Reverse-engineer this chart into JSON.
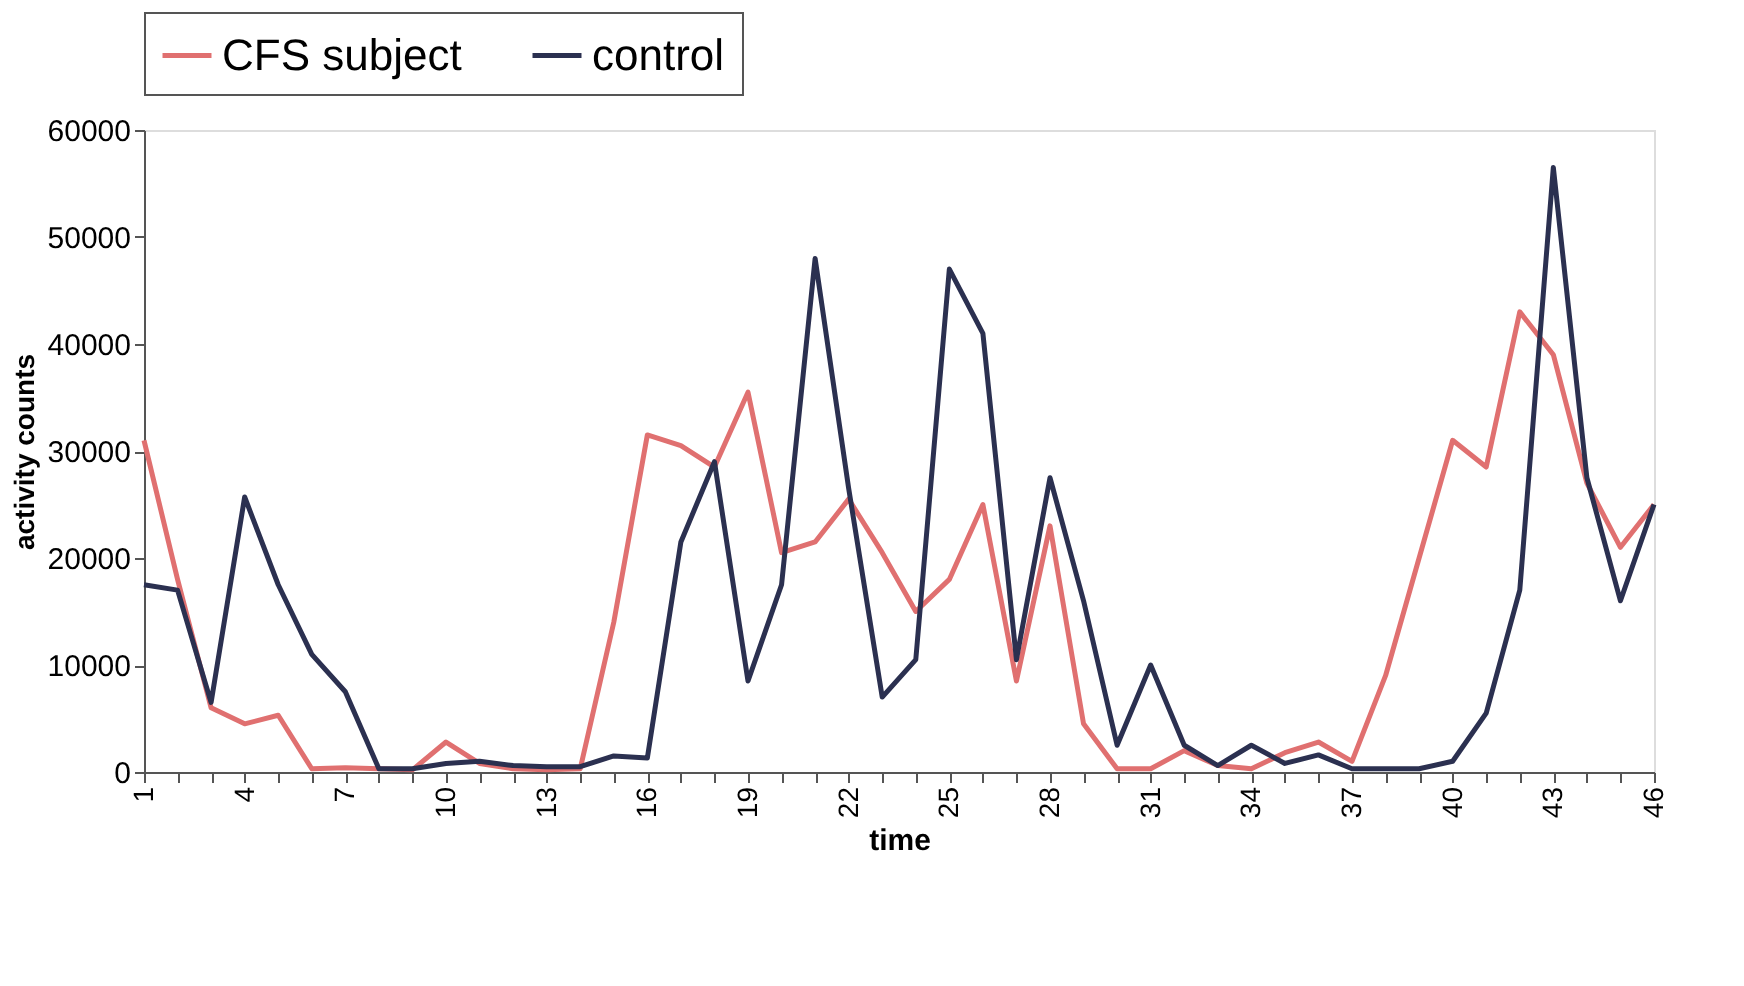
{
  "chart_data": {
    "type": "line",
    "xlabel": "time",
    "ylabel": "activity counts",
    "categories": [
      "1",
      null,
      null,
      "4",
      null,
      null,
      "7",
      null,
      null,
      "10",
      null,
      null,
      "13",
      null,
      null,
      "16",
      null,
      null,
      "19",
      null,
      null,
      "22",
      null,
      null,
      "25",
      null,
      null,
      "28",
      null,
      null,
      "31",
      null,
      null,
      "34",
      null,
      null,
      "37",
      null,
      null,
      "40",
      null,
      null,
      "43",
      null,
      null,
      "46"
    ],
    "series": [
      {
        "name": "CFS subject",
        "color": "#e07070",
        "values": [
          31000,
          18000,
          6000,
          4500,
          5300,
          300,
          400,
          300,
          200,
          2800,
          800,
          300,
          200,
          300,
          14000,
          31500,
          30500,
          28500,
          35500,
          20500,
          21500,
          25500,
          20500,
          15000,
          18000,
          25000,
          8500,
          23000,
          4500,
          300,
          300,
          2000,
          600,
          300,
          1800,
          2800,
          1000,
          9000,
          20000,
          31000,
          28500,
          43000,
          39000,
          27000,
          21000,
          25000
        ]
      },
      {
        "name": "control",
        "color": "#2b3050",
        "values": [
          17500,
          17000,
          6500,
          25700,
          17500,
          11000,
          7500,
          300,
          300,
          800,
          1000,
          600,
          500,
          500,
          1500,
          1300,
          21500,
          29000,
          8500,
          17500,
          48000,
          26500,
          7000,
          10500,
          47000,
          41000,
          10500,
          27500,
          16000,
          2500,
          10000,
          2500,
          600,
          2500,
          800,
          1600,
          300,
          300,
          300,
          1000,
          5500,
          17000,
          56500,
          27500,
          16000,
          25000
        ]
      }
    ],
    "ylim": [
      0,
      60000
    ],
    "yticks": [
      0,
      10000,
      20000,
      30000,
      40000,
      50000,
      60000
    ],
    "legend": "top",
    "grid": false
  }
}
